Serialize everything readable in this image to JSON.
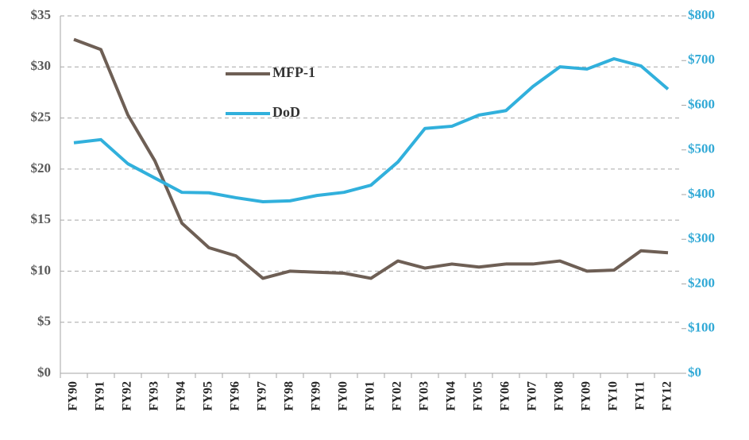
{
  "chart_data": {
    "type": "line",
    "categories": [
      "FY90",
      "FY91",
      "FY92",
      "FY93",
      "FY94",
      "FY95",
      "FY96",
      "FY97",
      "FY98",
      "FY99",
      "FY00",
      "FY01",
      "FY02",
      "FY03",
      "FY04",
      "FY05",
      "FY06",
      "FY07",
      "FY08",
      "FY09",
      "FY10",
      "FY11",
      "FY12"
    ],
    "series": [
      {
        "name": "MFP-1",
        "color": "#6e5f55",
        "axis": "y",
        "values": [
          32.7,
          31.7,
          25.3,
          20.8,
          14.7,
          12.3,
          11.5,
          9.3,
          10.0,
          9.9,
          9.8,
          9.3,
          11.0,
          10.3,
          10.7,
          10.4,
          10.7,
          10.7,
          11.0,
          10.0,
          10.1,
          12.0,
          11.8
        ]
      },
      {
        "name": "DoD",
        "color": "#31b0dc",
        "axis": "y2",
        "values": [
          516,
          523,
          469,
          437,
          405,
          404,
          393,
          384,
          386,
          398,
          405,
          421,
          473,
          548,
          553,
          578,
          588,
          642,
          686,
          681,
          704,
          688,
          636
        ]
      }
    ],
    "ylim": [
      0,
      35
    ],
    "yticks": [
      {
        "value": 0,
        "label": "$0"
      },
      {
        "value": 5,
        "label": "$5"
      },
      {
        "value": 10,
        "label": "$10"
      },
      {
        "value": 15,
        "label": "$15"
      },
      {
        "value": 20,
        "label": "$20"
      },
      {
        "value": 25,
        "label": "$25"
      },
      {
        "value": 30,
        "label": "$30"
      },
      {
        "value": 35,
        "label": "$35"
      }
    ],
    "y2lim": [
      0,
      800
    ],
    "y2ticks": [
      {
        "value": 0,
        "label": "$0"
      },
      {
        "value": 100,
        "label": "$100"
      },
      {
        "value": 200,
        "label": "$200"
      },
      {
        "value": 300,
        "label": "$300"
      },
      {
        "value": 400,
        "label": "$400"
      },
      {
        "value": 500,
        "label": "$500"
      },
      {
        "value": 600,
        "label": "$600"
      },
      {
        "value": 700,
        "label": "$700"
      },
      {
        "value": 800,
        "label": "$800"
      }
    ],
    "grid": true
  }
}
